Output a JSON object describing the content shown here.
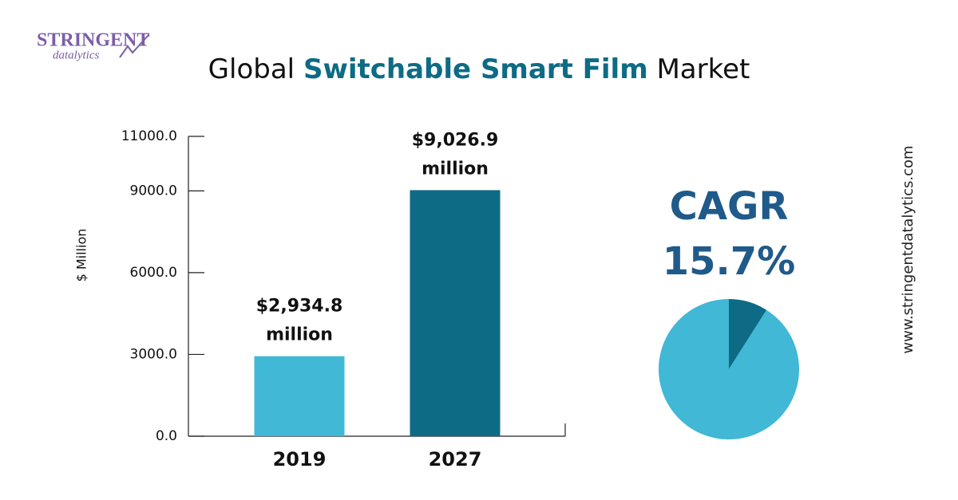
{
  "logo": {
    "line1": "STRINGENT",
    "line2": "datalytics"
  },
  "website": "www.stringentdatalytics.com",
  "chart_data": [
    {
      "type": "bar",
      "title_parts": [
        "Global",
        "Switchable Smart Film",
        "Market"
      ],
      "y_label": "$ Million",
      "categories": [
        "2019",
        "2027"
      ],
      "values": [
        2934.8,
        9026.9
      ],
      "value_labels": [
        "$2,934.8 million",
        "$9,026.9 million"
      ],
      "colors": [
        "#40b8d6",
        "#0d6b85"
      ],
      "ylim": [
        0,
        11000
      ],
      "yticks": [
        {
          "value": 0,
          "label": "0.0"
        },
        {
          "value": 3000,
          "label": "3000.0"
        },
        {
          "value": 6000,
          "label": "6000.0"
        },
        {
          "value": 9000,
          "label": "9000.0"
        },
        {
          "value": 11000,
          "label": "11000.0"
        }
      ]
    },
    {
      "type": "pie",
      "label": "CAGR",
      "value_label": "15.7%",
      "values": [
        9,
        91
      ],
      "colors": [
        "#0d6b85",
        "#40b8d6"
      ]
    }
  ]
}
